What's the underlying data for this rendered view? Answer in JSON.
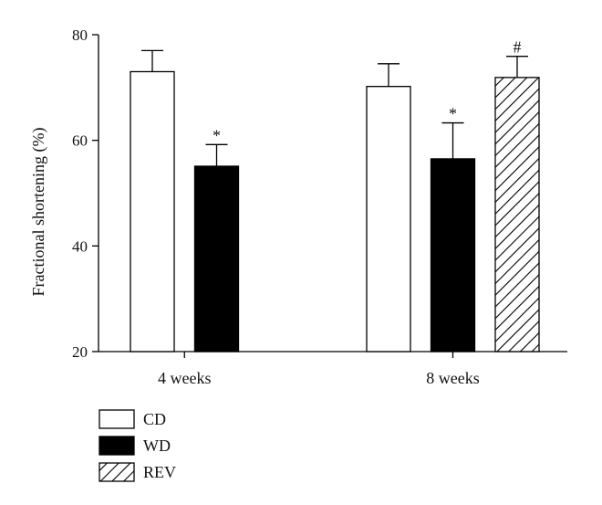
{
  "chart_data": {
    "type": "bar",
    "title": "",
    "xlabel": "",
    "ylabel": "Fractional shortening (%)",
    "ylim": [
      20,
      80
    ],
    "yticks": [
      20,
      40,
      60,
      80
    ],
    "categories": [
      "4 weeks",
      "8 weeks"
    ],
    "series": [
      {
        "name": "CD",
        "fill": "#ffffff",
        "pattern": "none",
        "values": [
          73,
          70.2
        ],
        "errors": [
          4,
          4.3
        ],
        "annotations": [
          "",
          ""
        ]
      },
      {
        "name": "WD",
        "fill": "#000000",
        "pattern": "none",
        "values": [
          55.1,
          56.5
        ],
        "errors": [
          4.1,
          6.8
        ],
        "annotations": [
          "*",
          "*"
        ]
      },
      {
        "name": "REV",
        "fill": "#ffffff",
        "pattern": "hatch",
        "values": [
          null,
          71.9
        ],
        "errors": [
          null,
          4
        ],
        "annotations": [
          "",
          "#"
        ]
      }
    ],
    "grid": false,
    "legend_position": "bottom-left"
  }
}
